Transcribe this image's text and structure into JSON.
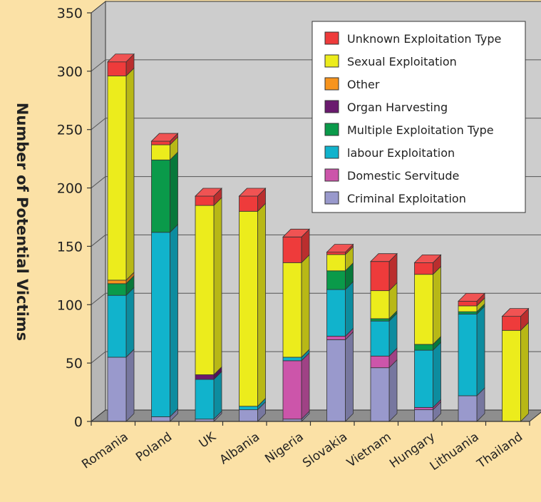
{
  "chart_data": {
    "type": "bar",
    "stacked": true,
    "style": "3d",
    "title": "",
    "xlabel": "",
    "ylabel": "Number of Potential Victims",
    "ylim": [
      0,
      350
    ],
    "yticks": [
      0,
      50,
      100,
      150,
      200,
      250,
      300,
      350
    ],
    "grid": true,
    "legend_position": "top-right",
    "categories": [
      "Romania",
      "Poland",
      "UK",
      "Albania",
      "Nigeria",
      "Slovakia",
      "Vietnam",
      "Hungary",
      "Lithuania",
      "Thailand"
    ],
    "series": [
      {
        "name": "Criminal Exploitation",
        "color": "#9999cc",
        "values": [
          55,
          4,
          2,
          10,
          2,
          70,
          46,
          10,
          22,
          0
        ]
      },
      {
        "name": "Domestic Servitude",
        "color": "#cc55aa",
        "values": [
          0,
          0,
          0,
          0,
          50,
          3,
          10,
          2,
          0,
          0
        ]
      },
      {
        "name": "labour Exploitation",
        "color": "#11b3cc",
        "values": [
          53,
          158,
          34,
          3,
          3,
          40,
          30,
          49,
          70,
          0
        ]
      },
      {
        "name": "Multiple Exploitation Type",
        "color": "#0a9a4a",
        "values": [
          10,
          62,
          0,
          0,
          0,
          16,
          2,
          5,
          2,
          0
        ]
      },
      {
        "name": "Organ Harvesting",
        "color": "#6a1a6e",
        "values": [
          0,
          0,
          4,
          0,
          0,
          0,
          0,
          0,
          0,
          0
        ]
      },
      {
        "name": "Other",
        "color": "#f7941d",
        "values": [
          3,
          0,
          0,
          0,
          0,
          0,
          0,
          0,
          0,
          0
        ]
      },
      {
        "name": "Sexual Exploitation",
        "color": "#ecec1c",
        "values": [
          175,
          13,
          145,
          167,
          81,
          14,
          24,
          60,
          5,
          78
        ]
      },
      {
        "name": "Unknown Exploitation Type",
        "color": "#ee3b3b",
        "values": [
          12,
          3,
          8,
          13,
          22,
          2,
          25,
          10,
          4,
          12
        ]
      }
    ]
  }
}
